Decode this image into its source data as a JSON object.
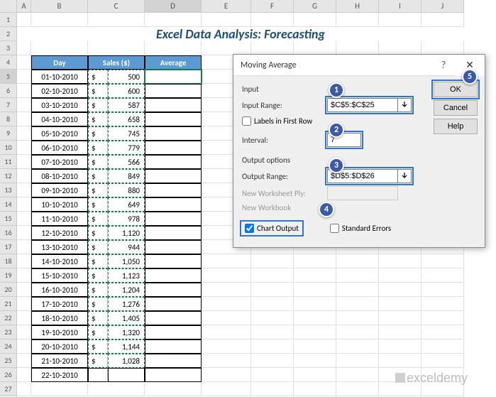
{
  "title": "Excel Data Analysis: Forecasting",
  "columns": [
    "A",
    "B",
    "C",
    "D",
    "E",
    "F",
    "G",
    "H",
    "I",
    "J"
  ],
  "headers": {
    "day": "Day",
    "sales": "Sales ($)",
    "avg": "Average"
  },
  "rows": [
    {
      "n": 5,
      "day": "01-10-2010",
      "cur": "$",
      "val": "500"
    },
    {
      "n": 6,
      "day": "02-10-2010",
      "cur": "$",
      "val": "600"
    },
    {
      "n": 7,
      "day": "03-10-2010",
      "cur": "$",
      "val": "587"
    },
    {
      "n": 8,
      "day": "04-10-2010",
      "cur": "$",
      "val": "658"
    },
    {
      "n": 9,
      "day": "05-10-2010",
      "cur": "$",
      "val": "745"
    },
    {
      "n": 10,
      "day": "06-10-2010",
      "cur": "$",
      "val": "779"
    },
    {
      "n": 11,
      "day": "07-10-2010",
      "cur": "$",
      "val": "566"
    },
    {
      "n": 12,
      "day": "08-10-2010",
      "cur": "$",
      "val": "849"
    },
    {
      "n": 13,
      "day": "09-10-2010",
      "cur": "$",
      "val": "880"
    },
    {
      "n": 14,
      "day": "10-10-2010",
      "cur": "$",
      "val": "649"
    },
    {
      "n": 15,
      "day": "11-10-2010",
      "cur": "$",
      "val": "978"
    },
    {
      "n": 16,
      "day": "12-10-2010",
      "cur": "$",
      "val": "1,120"
    },
    {
      "n": 17,
      "day": "13-10-2010",
      "cur": "$",
      "val": "944"
    },
    {
      "n": 18,
      "day": "14-10-2010",
      "cur": "$",
      "val": "1,050"
    },
    {
      "n": 19,
      "day": "15-10-2010",
      "cur": "$",
      "val": "1,123"
    },
    {
      "n": 20,
      "day": "16-10-2010",
      "cur": "$",
      "val": "1,204"
    },
    {
      "n": 21,
      "day": "17-10-2010",
      "cur": "$",
      "val": "1,276"
    },
    {
      "n": 22,
      "day": "18-10-2010",
      "cur": "$",
      "val": "1,405"
    },
    {
      "n": 23,
      "day": "19-10-2010",
      "cur": "$",
      "val": "1,320"
    },
    {
      "n": 24,
      "day": "20-10-2010",
      "cur": "$",
      "val": "1,144"
    },
    {
      "n": 25,
      "day": "21-10-2010",
      "cur": "$",
      "val": "1,028"
    },
    {
      "n": 26,
      "day": "22-10-2010",
      "cur": "",
      "val": ""
    }
  ],
  "dialog": {
    "title": "Moving Average",
    "sections": {
      "input": "Input",
      "output": "Output options"
    },
    "labels": {
      "inputRange": "Input Range:",
      "labelsFirstRow": "Labels in First Row",
      "interval": "Interval:",
      "outputRange": "Output Range:",
      "newWorksheet": "New Worksheet Ply:",
      "newWorkbook": "New Workbook",
      "chartOutput": "Chart Output",
      "stdErrors": "Standard Errors"
    },
    "values": {
      "inputRange": "$C$5:$C$25",
      "interval": "7",
      "outputRange": "$D$5:$D$26"
    },
    "buttons": {
      "ok": "OK",
      "cancel": "Cancel",
      "help": "Help"
    }
  },
  "callouts": [
    "1",
    "2",
    "3",
    "4",
    "5"
  ],
  "watermark": "exceldemy"
}
